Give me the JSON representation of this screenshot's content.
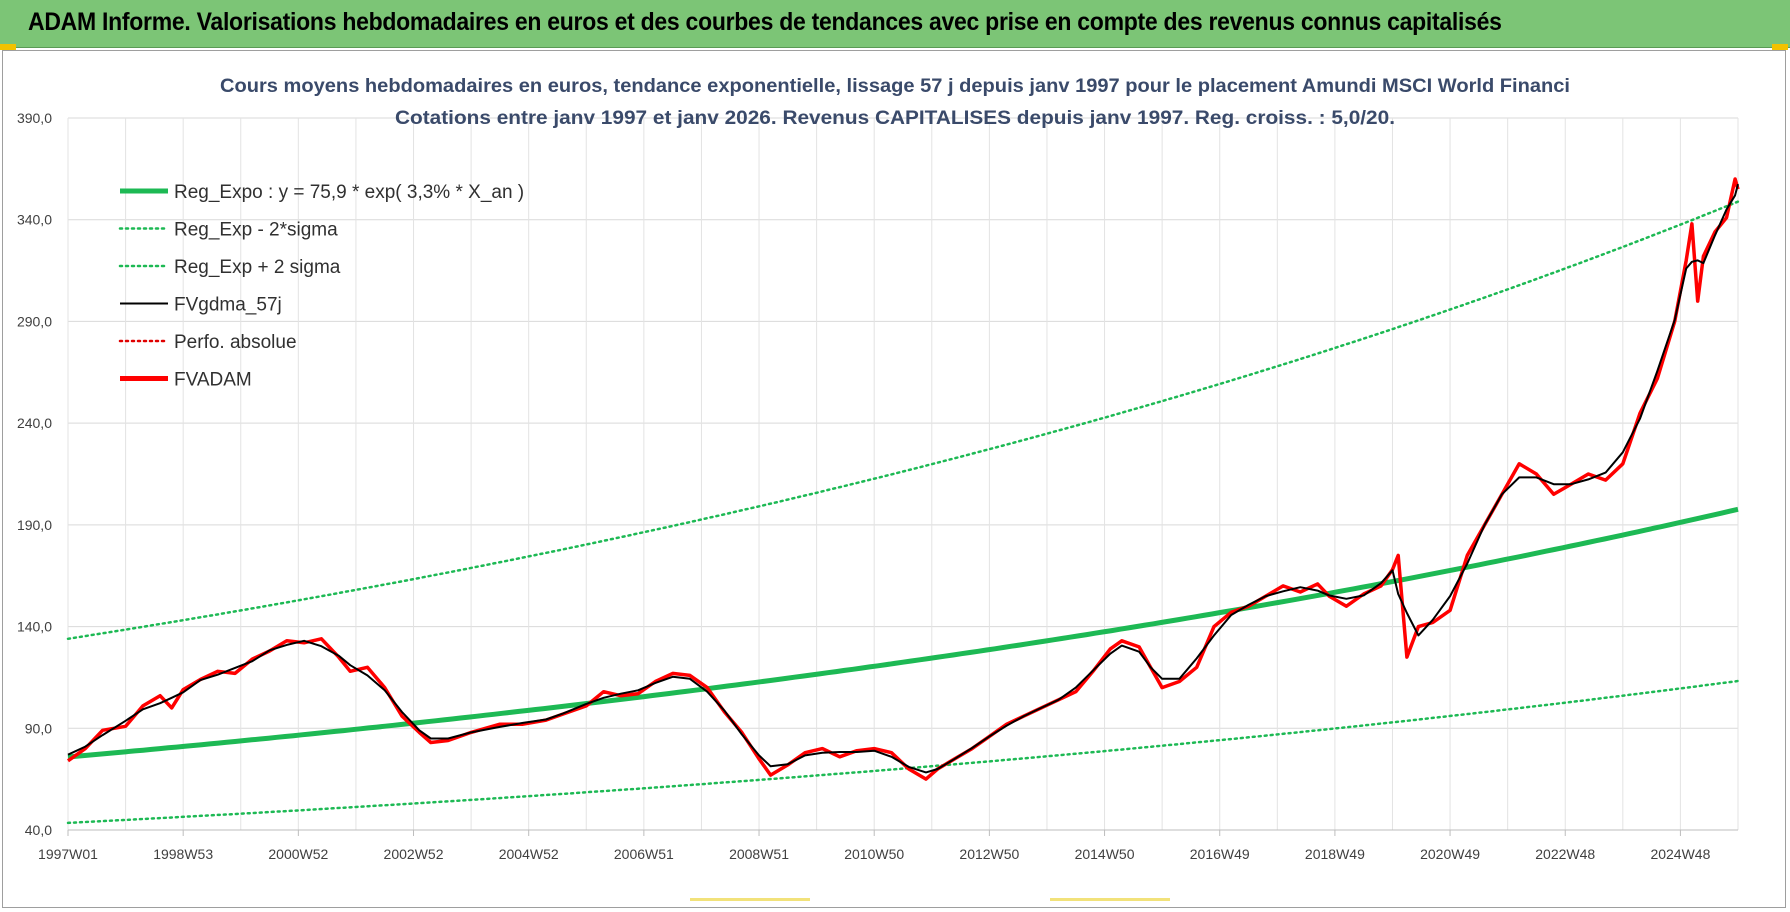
{
  "banner": {
    "title": "ADAM Informe. Valorisations hebdomadaires en euros et des courbes de tendances avec prise en compte des revenus connus capitalisés"
  },
  "chart_data": {
    "type": "line",
    "title": "Cours moyens hebdomadaires en euros, tendance exponentielle, lissage 57 j depuis janv 1997  pour le placement Amundi MSCI World Financi",
    "subtitle": "Cotations entre janv 1997 et janv 2026. Revenus CAPITALISES depuis janv 1997. Reg. croiss. : 5,0/20.",
    "xlabel": "",
    "ylabel": "",
    "ylim": [
      40,
      390
    ],
    "y_ticks": [
      "40,0",
      "90,0",
      "140,0",
      "190,0",
      "240,0",
      "290,0",
      "340,0",
      "390,0"
    ],
    "x_range": [
      1997.0,
      2026.0
    ],
    "x_ticks": [
      {
        "label": "1997W01",
        "x": 1997.0
      },
      {
        "label": "1998W53",
        "x": 1999.0
      },
      {
        "label": "2000W52",
        "x": 2001.0
      },
      {
        "label": "2002W52",
        "x": 2003.0
      },
      {
        "label": "2004W52",
        "x": 2005.0
      },
      {
        "label": "2006W51",
        "x": 2007.0
      },
      {
        "label": "2008W51",
        "x": 2009.0
      },
      {
        "label": "2010W50",
        "x": 2011.0
      },
      {
        "label": "2012W50",
        "x": 2013.0
      },
      {
        "label": "2014W50",
        "x": 2015.0
      },
      {
        "label": "2016W49",
        "x": 2017.0
      },
      {
        "label": "2018W49",
        "x": 2019.0
      },
      {
        "label": "2020W49",
        "x": 2021.0
      },
      {
        "label": "2022W48",
        "x": 2023.0
      },
      {
        "label": "2024W48",
        "x": 2025.0
      }
    ],
    "grid": true,
    "legend_position": "top-left",
    "series": [
      {
        "name": "Reg_Expo : y = 75,9 * exp( 3,3% *  X_an )",
        "color": "#1db954",
        "style": "solid-thick",
        "function": "exp",
        "a": 75.9,
        "rate": 0.033
      },
      {
        "name": "Reg_Exp - 2*sigma",
        "color": "#1db954",
        "style": "dotted",
        "function": "exp",
        "a": 43.5,
        "rate": 0.033
      },
      {
        "name": "Reg_Exp + 2 sigma",
        "color": "#1db954",
        "style": "dotted",
        "function": "exp",
        "a": 134.0,
        "rate": 0.033
      },
      {
        "name": "FVgdma_57j",
        "color": "#000000",
        "style": "solid",
        "smoothed_from": "FVADAM"
      },
      {
        "name": "Perfo. absolue",
        "color": "#e00000",
        "style": "dotted",
        "points": []
      },
      {
        "name": "FVADAM",
        "color": "#ff0000",
        "style": "solid-thick",
        "points": [
          [
            1997.0,
            74
          ],
          [
            1997.3,
            80
          ],
          [
            1997.6,
            89
          ],
          [
            1998.0,
            91
          ],
          [
            1998.3,
            101
          ],
          [
            1998.6,
            106
          ],
          [
            1998.8,
            100
          ],
          [
            1999.0,
            109
          ],
          [
            1999.3,
            114
          ],
          [
            1999.6,
            118
          ],
          [
            1999.9,
            117
          ],
          [
            2000.2,
            124
          ],
          [
            2000.5,
            128
          ],
          [
            2000.8,
            133
          ],
          [
            2001.1,
            132
          ],
          [
            2001.4,
            134
          ],
          [
            2001.7,
            125
          ],
          [
            2001.9,
            118
          ],
          [
            2002.2,
            120
          ],
          [
            2002.5,
            110
          ],
          [
            2002.8,
            96
          ],
          [
            2003.1,
            88
          ],
          [
            2003.3,
            83
          ],
          [
            2003.6,
            84
          ],
          [
            2004.0,
            88
          ],
          [
            2004.5,
            92
          ],
          [
            2004.9,
            92
          ],
          [
            2005.3,
            94
          ],
          [
            2005.6,
            97
          ],
          [
            2006.0,
            101
          ],
          [
            2006.3,
            108
          ],
          [
            2006.6,
            106
          ],
          [
            2006.9,
            107
          ],
          [
            2007.2,
            113
          ],
          [
            2007.5,
            117
          ],
          [
            2007.8,
            116
          ],
          [
            2008.1,
            110
          ],
          [
            2008.4,
            98
          ],
          [
            2008.7,
            88
          ],
          [
            2009.0,
            75
          ],
          [
            2009.2,
            67
          ],
          [
            2009.5,
            72
          ],
          [
            2009.8,
            78
          ],
          [
            2010.1,
            80
          ],
          [
            2010.4,
            76
          ],
          [
            2010.7,
            79
          ],
          [
            2011.0,
            80
          ],
          [
            2011.3,
            78
          ],
          [
            2011.6,
            70
          ],
          [
            2011.9,
            65
          ],
          [
            2012.1,
            70
          ],
          [
            2012.4,
            75
          ],
          [
            2012.7,
            80
          ],
          [
            2013.0,
            86
          ],
          [
            2013.3,
            92
          ],
          [
            2013.6,
            96
          ],
          [
            2013.9,
            100
          ],
          [
            2014.2,
            104
          ],
          [
            2014.5,
            108
          ],
          [
            2014.8,
            118
          ],
          [
            2015.1,
            129
          ],
          [
            2015.3,
            133
          ],
          [
            2015.6,
            130
          ],
          [
            2015.8,
            120
          ],
          [
            2016.0,
            110
          ],
          [
            2016.3,
            113
          ],
          [
            2016.6,
            120
          ],
          [
            2016.9,
            140
          ],
          [
            2017.2,
            147
          ],
          [
            2017.5,
            150
          ],
          [
            2017.8,
            155
          ],
          [
            2018.1,
            160
          ],
          [
            2018.4,
            157
          ],
          [
            2018.7,
            161
          ],
          [
            2018.9,
            155
          ],
          [
            2019.2,
            150
          ],
          [
            2019.5,
            156
          ],
          [
            2019.8,
            160
          ],
          [
            2020.0,
            168
          ],
          [
            2020.1,
            175
          ],
          [
            2020.25,
            125
          ],
          [
            2020.45,
            140
          ],
          [
            2020.7,
            142
          ],
          [
            2021.0,
            148
          ],
          [
            2021.3,
            175
          ],
          [
            2021.6,
            190
          ],
          [
            2021.9,
            205
          ],
          [
            2022.2,
            220
          ],
          [
            2022.5,
            215
          ],
          [
            2022.8,
            205
          ],
          [
            2023.1,
            210
          ],
          [
            2023.4,
            215
          ],
          [
            2023.7,
            212
          ],
          [
            2024.0,
            220
          ],
          [
            2024.3,
            245
          ],
          [
            2024.6,
            262
          ],
          [
            2024.9,
            290
          ],
          [
            2025.1,
            320
          ],
          [
            2025.2,
            338
          ],
          [
            2025.3,
            300
          ],
          [
            2025.4,
            322
          ],
          [
            2025.6,
            334
          ],
          [
            2025.8,
            341
          ],
          [
            2025.95,
            360
          ],
          [
            2026.0,
            355
          ]
        ]
      }
    ]
  }
}
